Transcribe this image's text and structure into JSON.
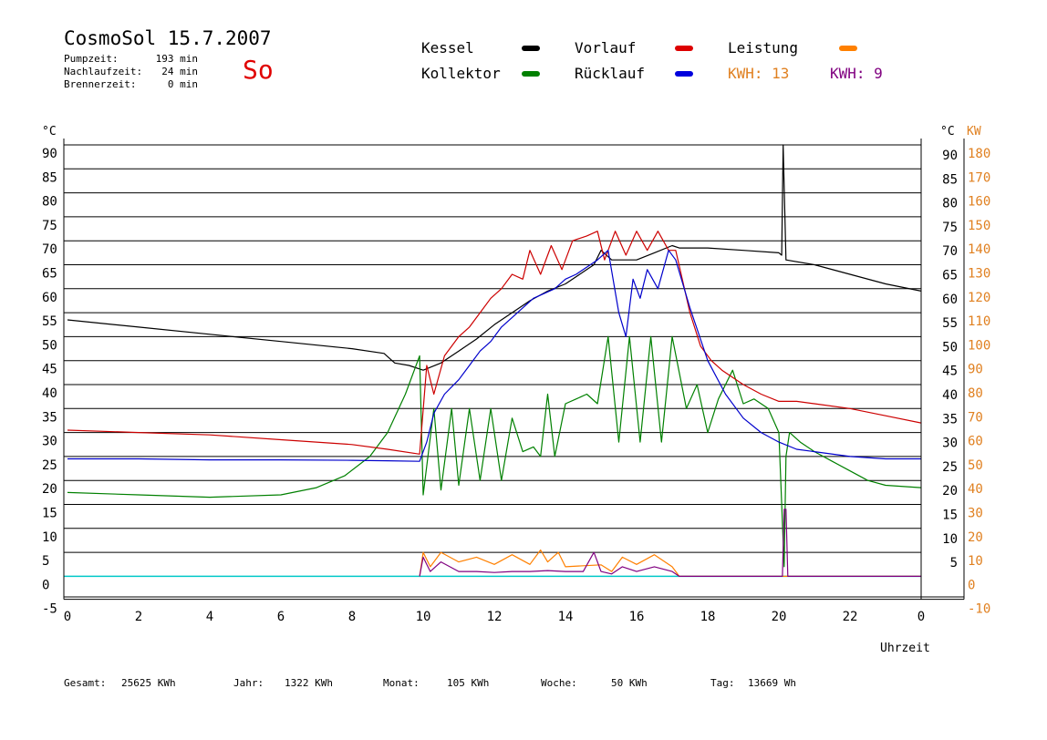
{
  "header": {
    "title": "CosmoSol 15.7.2007",
    "day": "So",
    "stats": [
      {
        "label": "Pumpzeit:",
        "value": "193 min"
      },
      {
        "label": "Nachlaufzeit:",
        "value": "24 min"
      },
      {
        "label": "Brennerzeit:",
        "value": "0 min"
      }
    ]
  },
  "legend": {
    "kessel": "Kessel",
    "kollektor": "Kollektor",
    "vorlauf": "Vorlauf",
    "ruecklauf": "Rücklauf",
    "leistung": "Leistung",
    "kwh1": "KWH: 13",
    "kwh2": "KWH: 9"
  },
  "colors": {
    "kessel": "#000000",
    "kollektor": "#008000",
    "vorlauf": "#cc0000",
    "ruecklauf": "#0000cc",
    "leistung": "#ff8000",
    "kwh2": "#800080",
    "baseline": "#00c8c8"
  },
  "footer": [
    {
      "label": "Gesamt:",
      "value": "25625 KWh"
    },
    {
      "label": "Jahr:",
      "value": "1322 KWh"
    },
    {
      "label": "Monat:",
      "value": "105 KWh"
    },
    {
      "label": "Woche:",
      "value": "50 KWh"
    },
    {
      "label": "Tag:",
      "value": "13669 Wh"
    }
  ],
  "chart_data": {
    "type": "line",
    "xlabel": "Uhrzeit",
    "ylabel": "°C",
    "ylabel_right": "KW",
    "xlim": [
      0,
      24
    ],
    "xticks": [
      "0",
      "2",
      "4",
      "6",
      "8",
      "10",
      "12",
      "14",
      "16",
      "18",
      "20",
      "22",
      "0"
    ],
    "ylim": [
      -5,
      90
    ],
    "yticks_left": [
      "90",
      "85",
      "80",
      "75",
      "70",
      "65",
      "60",
      "55",
      "50",
      "45",
      "40",
      "35",
      "30",
      "25",
      "20",
      "15",
      "10",
      "5",
      "0",
      "-5"
    ],
    "yticks_right_c": [
      "90",
      "85",
      "80",
      "75",
      "70",
      "65",
      "60",
      "55",
      "50",
      "45",
      "40",
      "35",
      "30",
      "25",
      "20",
      "15",
      "10",
      "5"
    ],
    "yticks_right_kw": [
      "180",
      "170",
      "160",
      "150",
      "140",
      "130",
      "120",
      "110",
      "100",
      "90",
      "80",
      "70",
      "60",
      "50",
      "40",
      "30",
      "20",
      "10",
      "0",
      "-10"
    ],
    "grid": "horizontal",
    "series": [
      {
        "name": "Kessel",
        "key": "kessel",
        "x": [
          0,
          2,
          4,
          6,
          8,
          8.9,
          9.2,
          9.6,
          10,
          10.5,
          11,
          11.5,
          12,
          12.5,
          13,
          13.5,
          14,
          14.5,
          14.8,
          15,
          15.3,
          16,
          16.5,
          17,
          17.2,
          18,
          19,
          20,
          20.08,
          20.12,
          20.2,
          21,
          22,
          23,
          24
        ],
        "y": [
          53.5,
          52,
          50.5,
          49,
          47.5,
          46.5,
          44.5,
          44,
          43,
          44.5,
          47,
          49.5,
          52.5,
          55,
          57.5,
          59.5,
          61,
          63.5,
          65,
          68,
          66,
          66,
          67.5,
          69,
          68.5,
          68.5,
          68,
          67.5,
          67,
          90,
          66,
          65,
          63,
          61,
          59.5
        ]
      },
      {
        "name": "Kollektor",
        "key": "kollektor",
        "x": [
          0,
          2,
          4,
          6,
          7,
          7.8,
          8.5,
          9,
          9.5,
          9.9,
          10,
          10.3,
          10.5,
          10.8,
          11,
          11.3,
          11.6,
          11.9,
          12.2,
          12.5,
          12.8,
          13.1,
          13.3,
          13.5,
          13.7,
          14,
          14.3,
          14.6,
          14.9,
          15.2,
          15.5,
          15.8,
          16.1,
          16.4,
          16.7,
          17,
          17.4,
          17.7,
          18,
          18.3,
          18.7,
          19,
          19.3,
          19.7,
          20,
          20.15,
          20.2,
          20.3,
          20.6,
          21,
          21.5,
          22,
          22.5,
          23,
          24
        ],
        "y": [
          17.5,
          17,
          16.5,
          17,
          18.5,
          21,
          25,
          30,
          38,
          46,
          17,
          35,
          18,
          35,
          19,
          35,
          20,
          35,
          20,
          33,
          26,
          27,
          25,
          38,
          25,
          36,
          37,
          38,
          36,
          50,
          28,
          50,
          28,
          50,
          28,
          50,
          35,
          40,
          30,
          37,
          43,
          36,
          37,
          35,
          30,
          2,
          25,
          30,
          28,
          26,
          24,
          22,
          20,
          19,
          18.5
        ]
      },
      {
        "name": "Vorlauf",
        "key": "vorlauf",
        "x": [
          0,
          2,
          4,
          6,
          8,
          9,
          9.9,
          10.1,
          10.3,
          10.6,
          11,
          11.3,
          11.6,
          11.9,
          12.2,
          12.5,
          12.8,
          13,
          13.3,
          13.6,
          13.9,
          14.2,
          14.6,
          14.9,
          15.1,
          15.4,
          15.7,
          16,
          16.3,
          16.6,
          16.9,
          17.1,
          17.5,
          17.8,
          18.1,
          18.4,
          19,
          19.5,
          20,
          20.5,
          21,
          22,
          23,
          24
        ],
        "y": [
          30.5,
          30,
          29.5,
          28.5,
          27.5,
          26.5,
          25.5,
          44,
          38,
          46,
          50,
          52,
          55,
          58,
          60,
          63,
          62,
          68,
          63,
          69,
          64,
          70,
          71,
          72,
          66,
          72,
          67,
          72,
          68,
          72,
          68,
          68,
          55,
          48,
          45,
          43,
          40,
          38,
          36.5,
          36.5,
          36,
          35,
          33.5,
          32
        ]
      },
      {
        "name": "Rücklauf",
        "key": "ruecklauf",
        "x": [
          0,
          2,
          4,
          6,
          8,
          9,
          9.9,
          10.1,
          10.3,
          10.6,
          11,
          11.3,
          11.6,
          11.9,
          12.2,
          12.5,
          12.8,
          13.1,
          13.4,
          13.7,
          14,
          14.3,
          14.6,
          14.9,
          15.2,
          15.5,
          15.7,
          15.9,
          16.1,
          16.3,
          16.6,
          16.9,
          17.1,
          17.5,
          18,
          18.5,
          19,
          19.5,
          20,
          20.5,
          21,
          22,
          23,
          24
        ],
        "y": [
          24.5,
          24.5,
          24.3,
          24.3,
          24.2,
          24.1,
          24,
          28,
          34,
          38,
          41,
          44,
          47,
          49,
          52,
          54,
          56,
          58,
          59,
          60,
          62,
          63,
          64.5,
          66,
          68,
          55,
          50,
          62,
          58,
          64,
          60,
          68,
          66,
          56,
          45,
          38,
          33,
          30,
          28,
          26.5,
          26,
          25,
          24.5,
          24.5
        ]
      },
      {
        "name": "Leistung",
        "key": "leistung",
        "x": [
          9.9,
          10,
          10.2,
          10.5,
          11,
          11.5,
          12,
          12.5,
          13,
          13.3,
          13.5,
          13.8,
          14,
          14.5,
          15,
          15.3,
          15.6,
          16,
          16.5,
          17,
          17.2,
          17.5,
          20,
          24
        ],
        "y": [
          0,
          5,
          2,
          5,
          3,
          4,
          2.5,
          4.5,
          2.5,
          5.5,
          3,
          5,
          2,
          2.2,
          2.4,
          1,
          4,
          2.5,
          4.5,
          2,
          0,
          0,
          0,
          0
        ]
      },
      {
        "name": "KWH: 9",
        "key": "kwh2",
        "x": [
          9.9,
          10,
          10.2,
          10.5,
          11,
          11.5,
          12,
          12.5,
          13,
          13.5,
          14,
          14.5,
          14.8,
          15,
          15.3,
          15.6,
          16,
          16.5,
          17,
          17.2,
          20.1,
          20.15,
          20.2,
          20.25,
          24
        ],
        "y": [
          0,
          4,
          1,
          3,
          1,
          1,
          0.8,
          1,
          1,
          1.2,
          1,
          1,
          5,
          1,
          0.5,
          2,
          1,
          2,
          1,
          0,
          0,
          14,
          14,
          0,
          0
        ]
      }
    ]
  }
}
